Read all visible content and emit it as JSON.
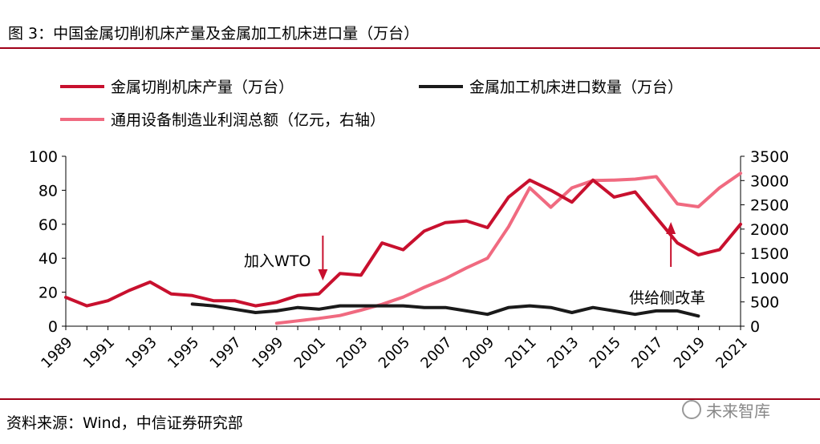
{
  "title": "图 3：中国金属切削机床产量及金属加工机床进口量（万台）",
  "source": "资料来源：Wind，中信证券研究部",
  "watermark": "未来智库",
  "chart_data": {
    "type": "line",
    "x": [
      1989,
      1990,
      1991,
      1992,
      1993,
      1994,
      1995,
      1996,
      1997,
      1998,
      1999,
      2000,
      2001,
      2002,
      2003,
      2004,
      2005,
      2006,
      2007,
      2008,
      2009,
      2010,
      2011,
      2012,
      2013,
      2014,
      2015,
      2016,
      2017,
      2018,
      2019,
      2020,
      2021
    ],
    "x_tick_labels": [
      "1989",
      "1991",
      "1993",
      "1995",
      "1997",
      "1999",
      "2001",
      "2003",
      "2005",
      "2007",
      "2009",
      "2011",
      "2013",
      "2015",
      "2017",
      "2019",
      "2021"
    ],
    "y_left_ticks": [
      "0",
      "20",
      "40",
      "60",
      "80",
      "100"
    ],
    "y_right_ticks": [
      "0",
      "500",
      "1000",
      "1500",
      "2000",
      "2500",
      "3000",
      "3500"
    ],
    "ylim_left": [
      0,
      100
    ],
    "ylim_right": [
      0,
      3500
    ],
    "series": [
      {
        "name": "金属切削机床产量（万台）",
        "axis": "left",
        "color": "#c8102e",
        "values": [
          17,
          12,
          15,
          21,
          26,
          19,
          18,
          15,
          15,
          12,
          14,
          18,
          19,
          31,
          30,
          49,
          45,
          56,
          61,
          62,
          58,
          76,
          86,
          80,
          73,
          86,
          76,
          79,
          64,
          49,
          42,
          45,
          60
        ]
      },
      {
        "name": "金属加工机床进口数量（万台）",
        "axis": "left",
        "color": "#1a1a1a",
        "values": [
          null,
          null,
          null,
          null,
          null,
          null,
          13,
          12,
          10,
          8,
          9,
          11,
          10,
          12,
          12,
          12,
          12,
          11,
          11,
          9,
          7,
          11,
          12,
          11,
          8,
          11,
          9,
          7,
          9,
          9,
          6,
          null,
          null
        ]
      },
      {
        "name": "通用设备制造业利润总额（亿元，右轴）",
        "axis": "right",
        "color": "#f06a80",
        "values": [
          null,
          null,
          null,
          null,
          null,
          null,
          null,
          null,
          null,
          null,
          60,
          110,
          160,
          220,
          330,
          450,
          600,
          800,
          980,
          1200,
          1400,
          2050,
          2850,
          2450,
          2850,
          3000,
          3010,
          3030,
          3080,
          2520,
          2460,
          2850,
          3150
        ]
      }
    ],
    "annotations": [
      {
        "text": "加入WTO",
        "x": 2001
      },
      {
        "text": "供给侧改革",
        "x": 2018
      }
    ],
    "legend_position": "top"
  }
}
